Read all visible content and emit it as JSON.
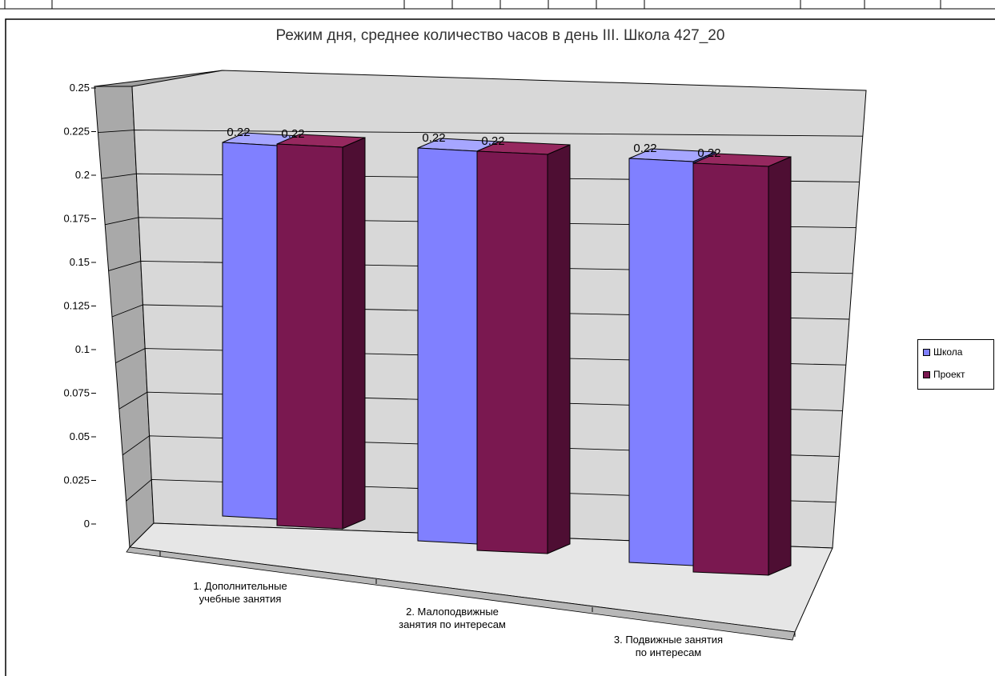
{
  "chart_data": {
    "type": "bar",
    "title": "Режим дня, среднее количество часов в день III. Школа 427_20",
    "categories": [
      [
        "1. Дополнительные",
        "учебные занятия"
      ],
      [
        "2. Малоподвижные",
        "занятия по интересам"
      ],
      [
        "3. Подвижные занятия",
        "по интересам"
      ]
    ],
    "series": [
      {
        "name": "Школа",
        "values": [
          0.22,
          0.22,
          0.22
        ],
        "labels": [
          "0.22",
          "0.22",
          "0.22"
        ]
      },
      {
        "name": "Проект",
        "values": [
          0.22,
          0.22,
          0.22
        ],
        "labels": [
          "0.22",
          "0.22",
          "0.22"
        ]
      }
    ],
    "y_ticks": [
      "0",
      "0.025",
      "0.05",
      "0.075",
      "0.1",
      "0.125",
      "0.15",
      "0.175",
      "0.2",
      "0.225",
      "0.25"
    ],
    "ylim": [
      0,
      0.25
    ],
    "grid": true,
    "legend_position": "right",
    "colors": {
      "school_front": "#8080ff",
      "school_side": "#5555b8",
      "school_top": "#a6a6ff",
      "project_front": "#7a1850",
      "project_side": "#4e0e33",
      "project_top": "#96285f",
      "wall": "#d8d8d8",
      "side_wall": "#a9a9a9",
      "floor": "#e6e6e6"
    }
  }
}
